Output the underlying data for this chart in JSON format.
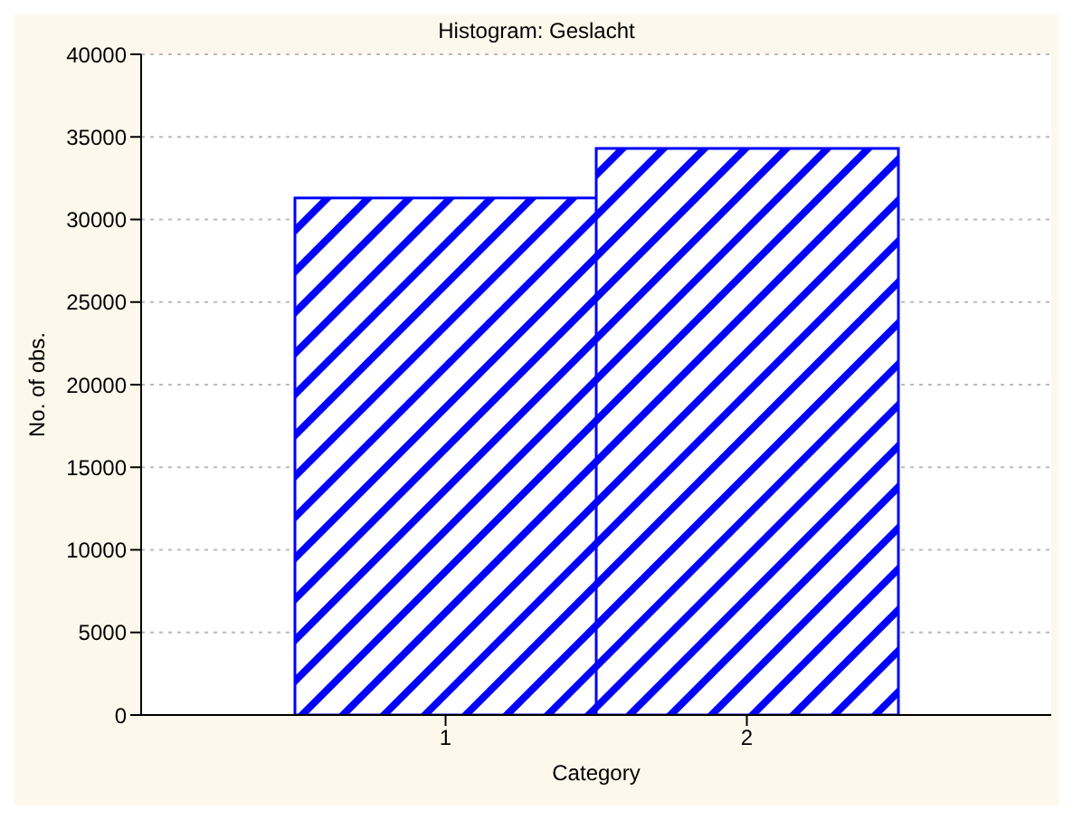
{
  "chart_data": {
    "type": "bar",
    "title": "Histogram: Geslacht",
    "xlabel": "Category",
    "ylabel": "No. of obs.",
    "categories": [
      "1",
      "2"
    ],
    "values": [
      31300,
      34300
    ],
    "color": "#0000ff",
    "ylim": [
      0,
      40000
    ],
    "yticks": [
      0,
      5000,
      10000,
      15000,
      20000,
      25000,
      30000,
      35000,
      40000
    ],
    "grid": "y"
  }
}
